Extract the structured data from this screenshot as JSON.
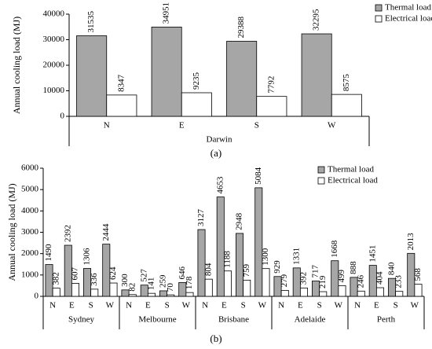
{
  "chart_data": [
    {
      "type": "bar",
      "caption": "(a)",
      "y_label": "Annual cooling  load (MJ)",
      "categories": [
        "N",
        "E",
        "S",
        "W"
      ],
      "group_labels": [
        "Darwin"
      ],
      "series": [
        {
          "name": "Thermal load",
          "color": "#a6a6a6",
          "values": [
            31535,
            34951,
            29388,
            32295
          ]
        },
        {
          "name": "Electrical load",
          "color": "#ffffff",
          "values": [
            8347,
            9235,
            7792,
            8575
          ]
        }
      ],
      "ylim": [
        0,
        40000
      ],
      "yticks": [
        0,
        10000,
        20000,
        30000,
        40000
      ],
      "legend": "upper right"
    },
    {
      "type": "bar",
      "caption": "(b)",
      "y_label": "Annual cooling  load (MJ)",
      "categories": [
        "N",
        "E",
        "S",
        "W",
        "N",
        "E",
        "S",
        "W",
        "N",
        "E",
        "S",
        "W",
        "N",
        "E",
        "S",
        "W",
        "N",
        "E",
        "S",
        "W"
      ],
      "group_labels": [
        "Sydney",
        "Melbourne",
        "Brisbane",
        "Adelaide",
        "Perth"
      ],
      "series": [
        {
          "name": "Thermal load",
          "color": "#a6a6a6",
          "values": [
            1490,
            2392,
            1306,
            2444,
            300,
            527,
            259,
            646,
            3127,
            4653,
            2948,
            5084,
            929,
            1331,
            717,
            1668,
            888,
            1451,
            840,
            2013
          ]
        },
        {
          "name": "Electrical load",
          "color": "#ffffff",
          "values": [
            382,
            607,
            336,
            624,
            82,
            141,
            70,
            178,
            804,
            1188,
            759,
            1300,
            279,
            392,
            219,
            499,
            246,
            404,
            233,
            568
          ]
        }
      ],
      "ylim": [
        0,
        6000
      ],
      "yticks": [
        0,
        1000,
        2000,
        3000,
        4000,
        5000,
        6000
      ],
      "legend": "upper right"
    }
  ]
}
